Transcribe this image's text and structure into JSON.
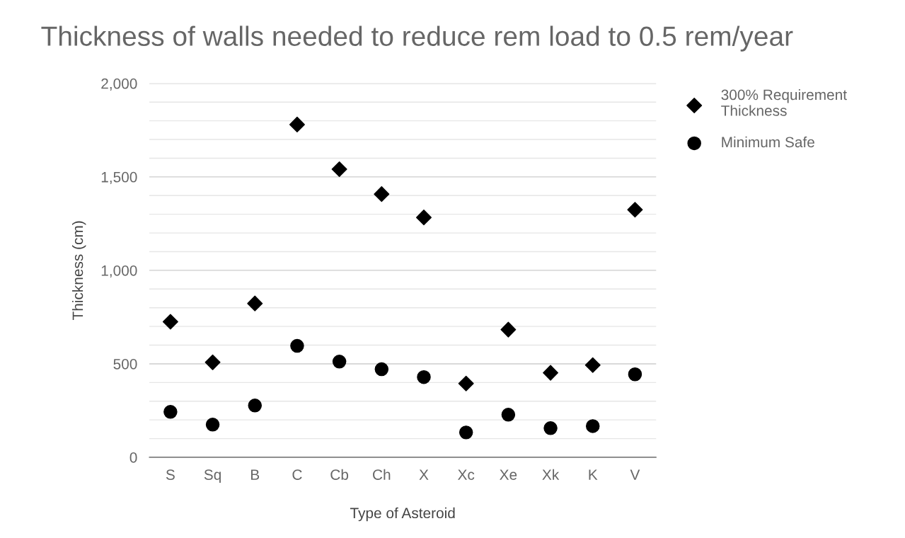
{
  "chart_data": {
    "type": "scatter",
    "title": "Thickness of walls needed to reduce rem load to 0.5 rem/year",
    "xlabel": "Type of Asteroid",
    "ylabel": "Thickness (cm)",
    "categories": [
      "S",
      "Sq",
      "B",
      "C",
      "Cb",
      "Ch",
      "X",
      "Xc",
      "Xe",
      "Xk",
      "K",
      "V"
    ],
    "series": [
      {
        "name": "300% Requirement Thickness",
        "color": "#000000",
        "marker": "diamond",
        "values": [
          725,
          508,
          823,
          1780,
          1541,
          1408,
          1283,
          395,
          683,
          452,
          493,
          1324
        ]
      },
      {
        "name": "Minimum Safe",
        "color": "#000000",
        "marker": "circle",
        "values": [
          243,
          175,
          277,
          596,
          512,
          471,
          429,
          133,
          228,
          156,
          167,
          444
        ]
      }
    ],
    "ylim": [
      0,
      2000
    ],
    "yticks": [
      {
        "value": 0,
        "label": "0"
      },
      {
        "value": 100,
        "label": null
      },
      {
        "value": 200,
        "label": null
      },
      {
        "value": 300,
        "label": null
      },
      {
        "value": 400,
        "label": null
      },
      {
        "value": 500,
        "label": "500"
      },
      {
        "value": 600,
        "label": null
      },
      {
        "value": 700,
        "label": null
      },
      {
        "value": 800,
        "label": null
      },
      {
        "value": 900,
        "label": null
      },
      {
        "value": 1000,
        "label": "1,000"
      },
      {
        "value": 1100,
        "label": null
      },
      {
        "value": 1200,
        "label": null
      },
      {
        "value": 1300,
        "label": null
      },
      {
        "value": 1400,
        "label": null
      },
      {
        "value": 1500,
        "label": "1,500"
      },
      {
        "value": 1600,
        "label": null
      },
      {
        "value": 1700,
        "label": null
      },
      {
        "value": 1800,
        "label": null
      },
      {
        "value": 1900,
        "label": null
      },
      {
        "value": 2000,
        "label": "2,000"
      }
    ],
    "grid": "y",
    "legend": "top right"
  }
}
